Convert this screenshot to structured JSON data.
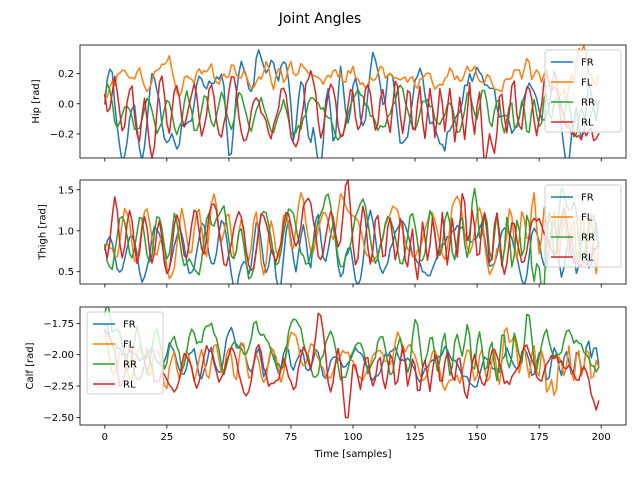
{
  "figure": {
    "suptitle": "Joint Angles"
  },
  "chart_data": [
    {
      "type": "line",
      "ylabel": "Hip [rad]",
      "xlabel": "",
      "xlim": [
        -10,
        210
      ],
      "ylim": [
        -0.36,
        0.39
      ],
      "xticks": [
        0,
        25,
        50,
        75,
        100,
        125,
        150,
        175,
        200
      ],
      "yticks": [
        -0.2,
        0.0,
        0.2
      ],
      "ytick_labels": [
        "−0.2",
        "0.0",
        "0.2"
      ],
      "show_xtick_labels": false,
      "legend_position": "right",
      "series": [
        {
          "name": "FR",
          "color": "#1f77b4",
          "base": 0.0,
          "amp": 0.19,
          "period": 8.0,
          "phase": 0.0,
          "noise": 0.06,
          "keypoints": [
            [
              0,
              0.0
            ],
            [
              9,
              -0.25
            ],
            [
              14,
              -0.3
            ],
            [
              29,
              -0.3
            ],
            [
              42,
              0.15
            ],
            [
              51,
              -0.33
            ],
            [
              57,
              0.19
            ],
            [
              64,
              0.25
            ],
            [
              71,
              0.25
            ],
            [
              85,
              -0.27
            ],
            [
              110,
              0.22
            ],
            [
              122,
              -0.22
            ],
            [
              136,
              -0.27
            ],
            [
              147,
              0.2
            ],
            [
              188,
              -0.22
            ],
            [
              199,
              0.02
            ]
          ]
        },
        {
          "name": "FL",
          "color": "#ff7f0e",
          "base": 0.17,
          "amp": 0.04,
          "period": 6.0,
          "phase": 1.2,
          "noise": 0.045,
          "keypoints": [
            [
              0,
              0.03
            ],
            [
              4,
              0.12
            ],
            [
              25,
              0.28
            ],
            [
              31,
              0.08
            ],
            [
              40,
              0.22
            ],
            [
              50,
              0.18
            ],
            [
              65,
              0.28
            ],
            [
              75,
              0.28
            ],
            [
              94,
              0.18
            ],
            [
              100,
              0.25
            ],
            [
              111,
              0.25
            ],
            [
              125,
              0.12
            ],
            [
              131,
              0.2
            ],
            [
              148,
              0.22
            ],
            [
              160,
              0.08
            ],
            [
              170,
              0.3
            ],
            [
              185,
              0.1
            ],
            [
              192,
              0.35
            ],
            [
              199,
              0.19
            ]
          ]
        },
        {
          "name": "RR",
          "color": "#2ca02c",
          "base": -0.06,
          "amp": 0.11,
          "period": 9.0,
          "phase": 2.2,
          "noise": 0.04,
          "keypoints": [
            [
              0,
              0.05
            ],
            [
              2,
              0.09
            ],
            [
              20,
              -0.12
            ],
            [
              50,
              -0.12
            ],
            [
              75,
              -0.2
            ],
            [
              96,
              -0.2
            ],
            [
              120,
              0.1
            ],
            [
              150,
              -0.1
            ],
            [
              175,
              -0.15
            ],
            [
              190,
              -0.2
            ],
            [
              199,
              -0.03
            ]
          ]
        },
        {
          "name": "RL",
          "color": "#d62728",
          "base": -0.04,
          "amp": 0.16,
          "period": 7.0,
          "phase": 3.7,
          "noise": 0.05,
          "keypoints": [
            [
              0,
              0.06
            ],
            [
              18,
              -0.27
            ],
            [
              46,
              -0.2
            ],
            [
              75,
              -0.22
            ],
            [
              84,
              0.15
            ],
            [
              95,
              -0.22
            ],
            [
              117,
              0.15
            ],
            [
              155,
              -0.2
            ],
            [
              177,
              0.15
            ],
            [
              190,
              -0.22
            ],
            [
              199,
              -0.2
            ]
          ]
        }
      ]
    },
    {
      "type": "line",
      "ylabel": "Thigh [rad]",
      "xlabel": "",
      "xlim": [
        -10,
        210
      ],
      "ylim": [
        0.35,
        1.62
      ],
      "xticks": [
        0,
        25,
        50,
        75,
        100,
        125,
        150,
        175,
        200
      ],
      "yticks": [
        0.5,
        1.0,
        1.5
      ],
      "ytick_labels": [
        "0.5",
        "1.0",
        "1.5"
      ],
      "show_xtick_labels": false,
      "legend_position": "right",
      "series": [
        {
          "name": "FR",
          "color": "#1f77b4",
          "base": 0.78,
          "amp": 0.28,
          "period": 8.5,
          "phase": 0.4,
          "noise": 0.06,
          "keypoints": [
            [
              0,
              0.77
            ],
            [
              3,
              0.85
            ],
            [
              14,
              0.5
            ],
            [
              34,
              0.48
            ],
            [
              54,
              0.45
            ],
            [
              61,
              1.1
            ],
            [
              69,
              0.43
            ],
            [
              86,
              1.2
            ],
            [
              100,
              0.6
            ],
            [
              107,
              1.25
            ],
            [
              131,
              0.45
            ],
            [
              152,
              1.1
            ],
            [
              170,
              0.45
            ],
            [
              185,
              0.55
            ],
            [
              199,
              0.8
            ]
          ]
        },
        {
          "name": "FL",
          "color": "#ff7f0e",
          "base": 0.95,
          "amp": 0.28,
          "period": 7.5,
          "phase": 1.5,
          "noise": 0.06,
          "keypoints": [
            [
              0,
              0.8
            ],
            [
              25,
              0.55
            ],
            [
              45,
              1.3
            ],
            [
              65,
              0.6
            ],
            [
              78,
              1.3
            ],
            [
              95,
              1.45
            ],
            [
              116,
              1.3
            ],
            [
              140,
              1.3
            ],
            [
              157,
              0.6
            ],
            [
              172,
              1.28
            ],
            [
              190,
              0.65
            ],
            [
              199,
              0.8
            ]
          ]
        },
        {
          "name": "RR",
          "color": "#2ca02c",
          "base": 0.92,
          "amp": 0.3,
          "period": 8.0,
          "phase": 2.6,
          "noise": 0.06,
          "keypoints": [
            [
              0,
              0.83
            ],
            [
              35,
              0.6
            ],
            [
              45,
              1.15
            ],
            [
              57,
              0.6
            ],
            [
              75,
              1.25
            ],
            [
              90,
              1.45
            ],
            [
              105,
              1.3
            ],
            [
              150,
              1.3
            ],
            [
              175,
              0.55
            ],
            [
              186,
              1.3
            ],
            [
              199,
              0.8
            ]
          ]
        },
        {
          "name": "RL",
          "color": "#d62728",
          "base": 0.9,
          "amp": 0.3,
          "period": 7.0,
          "phase": 4.0,
          "noise": 0.06,
          "keypoints": [
            [
              0,
              0.8
            ],
            [
              5,
              1.25
            ],
            [
              24,
              0.6
            ],
            [
              42,
              1.2
            ],
            [
              60,
              0.55
            ],
            [
              80,
              1.3
            ],
            [
              97,
              1.55
            ],
            [
              104,
              1.3
            ],
            [
              125,
              0.6
            ],
            [
              145,
              1.35
            ],
            [
              162,
              0.6
            ],
            [
              185,
              1.28
            ],
            [
              199,
              0.85
            ]
          ]
        }
      ]
    },
    {
      "type": "line",
      "ylabel": "Calf [rad]",
      "xlabel": "Time [samples]",
      "xlim": [
        -10,
        210
      ],
      "ylim": [
        -2.56,
        -1.62
      ],
      "xticks": [
        0,
        25,
        50,
        75,
        100,
        125,
        150,
        175,
        200
      ],
      "yticks": [
        -2.5,
        -2.25,
        -2.0,
        -1.75
      ],
      "ytick_labels": [
        "−2.50",
        "−2.25",
        "−2.00",
        "−1.75"
      ],
      "show_xtick_labels": true,
      "xtick_labels": [
        "0",
        "25",
        "50",
        "75",
        "100",
        "125",
        "150",
        "175",
        "200"
      ],
      "legend_position": "left",
      "series": [
        {
          "name": "FR",
          "color": "#1f77b4",
          "base": -2.07,
          "amp": 0.1,
          "period": 8.0,
          "phase": 0.9,
          "noise": 0.04,
          "keypoints": [
            [
              0,
              -1.77
            ],
            [
              5,
              -1.95
            ],
            [
              14,
              -2.05
            ],
            [
              25,
              -2.0
            ],
            [
              52,
              -1.85
            ],
            [
              70,
              -2.15
            ],
            [
              96,
              -2.1
            ],
            [
              123,
              -2.05
            ],
            [
              150,
              -2.25
            ],
            [
              180,
              -2.05
            ],
            [
              197,
              -1.95
            ],
            [
              199,
              -2.08
            ]
          ]
        },
        {
          "name": "FL",
          "color": "#ff7f0e",
          "base": -2.07,
          "amp": 0.12,
          "period": 7.0,
          "phase": 2.0,
          "noise": 0.04,
          "keypoints": [
            [
              0,
              -1.8
            ],
            [
              25,
              -2.27
            ],
            [
              50,
              -1.95
            ],
            [
              77,
              -1.85
            ],
            [
              100,
              -2.05
            ],
            [
              118,
              -1.82
            ],
            [
              140,
              -2.2
            ],
            [
              163,
              -1.9
            ],
            [
              180,
              -2.2
            ],
            [
              199,
              -2.1
            ]
          ]
        },
        {
          "name": "RR",
          "color": "#2ca02c",
          "base": -1.98,
          "amp": 0.14,
          "period": 8.5,
          "phase": 3.3,
          "noise": 0.05,
          "keypoints": [
            [
              0,
              -1.68
            ],
            [
              2,
              -1.68
            ],
            [
              40,
              -1.8
            ],
            [
              60,
              -1.75
            ],
            [
              75,
              -1.75
            ],
            [
              95,
              -2.2
            ],
            [
              125,
              -1.72
            ],
            [
              145,
              -1.9
            ],
            [
              170,
              -1.68
            ],
            [
              183,
              -2.0
            ],
            [
              199,
              -2.1
            ]
          ]
        },
        {
          "name": "RL",
          "color": "#d62728",
          "base": -2.1,
          "amp": 0.14,
          "period": 7.5,
          "phase": 4.5,
          "noise": 0.05,
          "keypoints": [
            [
              0,
              -1.8
            ],
            [
              25,
              -2.2
            ],
            [
              50,
              -2.0
            ],
            [
              70,
              -2.2
            ],
            [
              86,
              -1.67
            ],
            [
              98,
              -2.5
            ],
            [
              115,
              -2.0
            ],
            [
              145,
              -2.3
            ],
            [
              175,
              -2.2
            ],
            [
              190,
              -2.2
            ],
            [
              197,
              -2.37
            ],
            [
              199,
              -2.37
            ]
          ]
        }
      ]
    }
  ]
}
